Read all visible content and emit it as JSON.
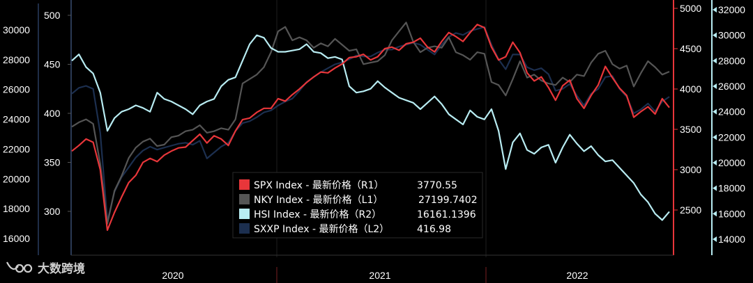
{
  "chart_data": {
    "type": "line",
    "x_labels": [
      "2020",
      "2021",
      "2022"
    ],
    "axes": {
      "L1": {
        "ticks": [
          16000,
          18000,
          20000,
          22000,
          24000,
          26000,
          28000,
          30000
        ]
      },
      "L2": {
        "ticks": [
          300,
          350,
          400,
          450,
          500
        ]
      },
      "R1": {
        "ticks": [
          2500,
          3000,
          3500,
          4000,
          4500,
          5000
        ],
        "color": "#e8363a"
      },
      "R2": {
        "ticks": [
          14000,
          16000,
          18000,
          20000,
          22000,
          24000,
          26000,
          28000,
          30000,
          32000
        ],
        "color": "#b8ecf2"
      }
    },
    "series": [
      {
        "name": "SPX Index",
        "field": "最新价格",
        "axis": "R1",
        "last": "3770.55",
        "color": "#e8363a",
        "values": [
          3230,
          3300,
          3380,
          3340,
          3000,
          2250,
          2470,
          2660,
          2840,
          2930,
          3090,
          3140,
          3100,
          3180,
          3230,
          3270,
          3280,
          3360,
          3440,
          3330,
          3420,
          3380,
          3300,
          3480,
          3620,
          3640,
          3710,
          3760,
          3760,
          3880,
          3850,
          3930,
          4000,
          4080,
          4150,
          4210,
          4200,
          4260,
          4310,
          4390,
          4400,
          4430,
          4360,
          4400,
          4500,
          4520,
          4480,
          4560,
          4580,
          4630,
          4520,
          4460,
          4590,
          4700,
          4650,
          4590,
          4700,
          4800,
          4760,
          4520,
          4360,
          4400,
          4580,
          4450,
          4200,
          4100,
          4150,
          4020,
          3860,
          4040,
          4110,
          3880,
          3760,
          3920,
          4050,
          4280,
          4140,
          4010,
          3920,
          3650,
          3720,
          3780,
          3690,
          3880,
          3770
        ]
      },
      {
        "name": "NKY Index",
        "field": "最新价格",
        "axis": "L1",
        "last": "27199.7402",
        "color": "#555555",
        "values": [
          23500,
          23800,
          24000,
          23700,
          21000,
          17000,
          19200,
          20200,
          21400,
          22100,
          22500,
          22700,
          22200,
          22300,
          22800,
          22900,
          23200,
          23300,
          23600,
          23100,
          23200,
          23400,
          23300,
          24000,
          26400,
          26700,
          27000,
          27500,
          28500,
          29900,
          30200,
          29300,
          29500,
          29300,
          28800,
          29100,
          28900,
          29400,
          29000,
          28600,
          28700,
          27700,
          27800,
          27900,
          28300,
          29300,
          29900,
          30500,
          29200,
          28500,
          28800,
          28900,
          28800,
          29500,
          28500,
          28300,
          28000,
          28500,
          28400,
          26500,
          26300,
          25600,
          26700,
          27900,
          26800,
          27000,
          26600,
          26400,
          26300,
          26800,
          26500,
          27000,
          26900,
          27800,
          28400,
          28600,
          27700,
          27400,
          27600,
          26200,
          27100,
          27900,
          27500,
          27000,
          27199.7402
        ]
      },
      {
        "name": "HSI Index",
        "field": "最新价格",
        "axis": "R2",
        "last": "16161.1396",
        "color": "#b8ecf2",
        "values": [
          28000,
          28500,
          27500,
          27000,
          25500,
          22500,
          23500,
          24000,
          24200,
          24500,
          24300,
          24000,
          25500,
          25000,
          24800,
          24500,
          24200,
          23800,
          24500,
          24800,
          25000,
          26000,
          26500,
          26700,
          28000,
          29300,
          30000,
          29800,
          29000,
          28700,
          28700,
          28800,
          28900,
          29300,
          28700,
          28600,
          28200,
          28300,
          28100,
          26000,
          25500,
          25600,
          25800,
          26400,
          25900,
          25500,
          25100,
          24900,
          24700,
          24200,
          24700,
          25200,
          24600,
          23800,
          23400,
          23000,
          24100,
          23600,
          23400,
          24200,
          22500,
          19500,
          21600,
          22300,
          21000,
          20700,
          21200,
          21400,
          20000,
          21200,
          22200,
          21500,
          20900,
          21300,
          20600,
          20100,
          20200,
          19600,
          19000,
          18400,
          17500,
          16900,
          16000,
          15500,
          16161.1396
        ]
      },
      {
        "name": "SXXP Index",
        "field": "最新价格",
        "axis": "L2",
        "last": "416.98",
        "color": "#1c2f4f",
        "values": [
          420,
          426,
          428,
          425,
          380,
          290,
          320,
          335,
          345,
          355,
          362,
          366,
          363,
          365,
          367,
          369,
          370,
          368,
          372,
          354,
          360,
          366,
          370,
          382,
          390,
          392,
          396,
          401,
          403,
          408,
          412,
          415,
          423,
          432,
          437,
          442,
          446,
          450,
          452,
          455,
          459,
          458,
          458,
          462,
          465,
          465,
          468,
          470,
          472,
          470,
          465,
          460,
          470,
          478,
          482,
          480,
          484,
          486,
          488,
          470,
          455,
          445,
          460,
          460,
          447,
          444,
          446,
          440,
          423,
          425,
          430,
          418,
          408,
          420,
          425,
          437,
          438,
          425,
          417,
          400,
          404,
          410,
          402,
          412,
          416.98
        ]
      }
    ]
  },
  "watermark": {
    "text": "大数跨境"
  }
}
